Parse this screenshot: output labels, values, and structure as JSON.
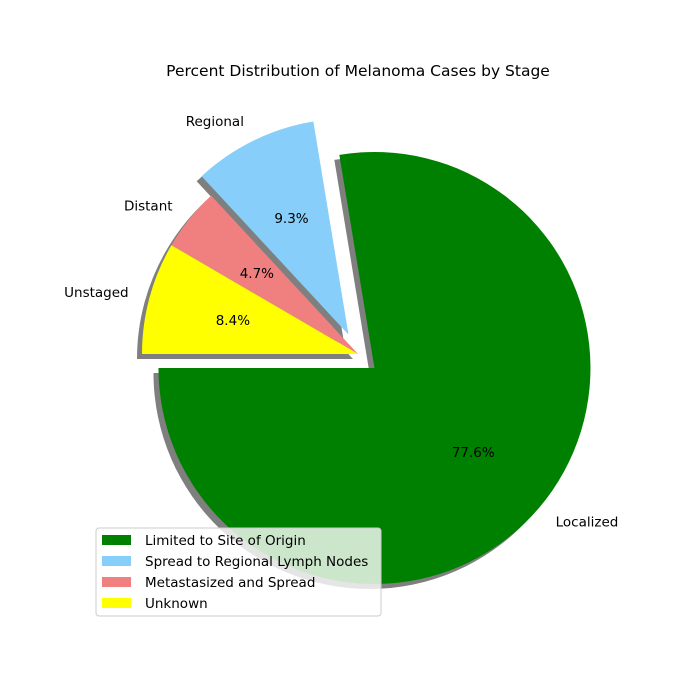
{
  "chart_data": {
    "type": "pie",
    "title": "Percent Distribution of Melanoma Cases by Stage",
    "slices": [
      {
        "label": "Localized",
        "value": 77.6,
        "pct_label": "77.6%",
        "color": "#008000",
        "legend": "Limited to Site of Origin",
        "exploded": true
      },
      {
        "label": "Regional",
        "value": 9.3,
        "pct_label": "9.3%",
        "color": "#87CEFA",
        "legend": "Spread to Regional Lymph Nodes",
        "exploded": true
      },
      {
        "label": "Distant",
        "value": 4.7,
        "pct_label": "4.7%",
        "color": "#F08080",
        "legend": "Metastasized and Spread",
        "exploded": false
      },
      {
        "label": "Unstaged",
        "value": 8.4,
        "pct_label": "8.4%",
        "color": "#FFFF00",
        "legend": "Unknown",
        "exploded": false
      }
    ],
    "shadow": true,
    "legend_position": "lower-left"
  }
}
